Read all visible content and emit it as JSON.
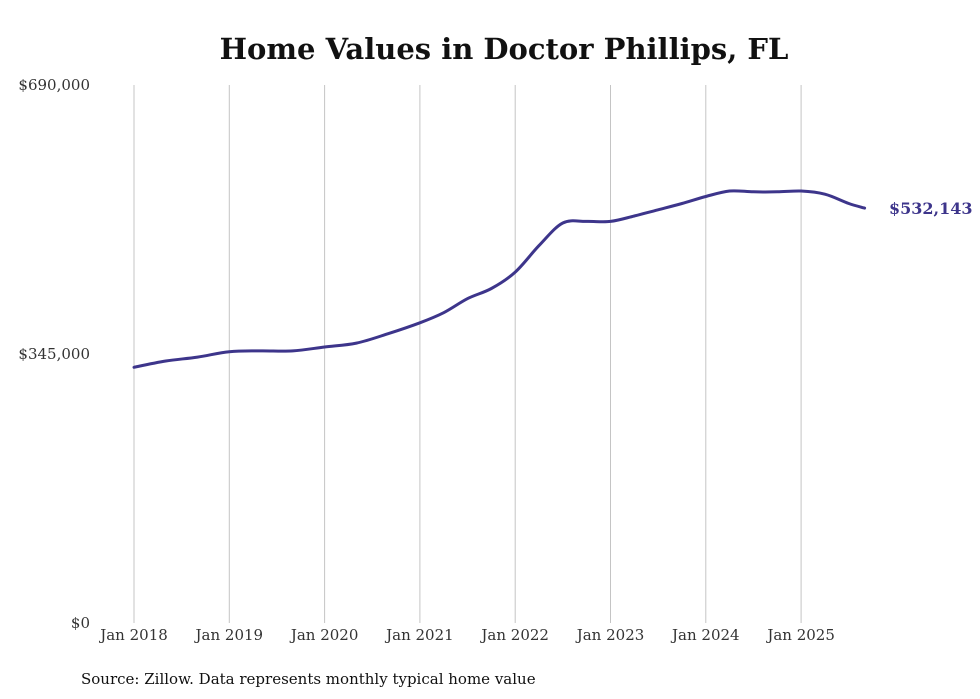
{
  "chart_data": {
    "type": "line",
    "title": "Home Values in Doctor Phillips, FL",
    "source": "Source: Zillow. Data represents monthly typical home value",
    "xlabel": "",
    "ylabel": "",
    "ylim": [
      0,
      690000
    ],
    "y_ticks": [
      {
        "value": 0,
        "label": "$0"
      },
      {
        "value": 345000,
        "label": "$345,000"
      },
      {
        "value": 690000,
        "label": "$690,000"
      }
    ],
    "x_ticks": [
      "Jan 2018",
      "Jan 2019",
      "Jan 2020",
      "Jan 2021",
      "Jan 2022",
      "Jan 2023",
      "Jan 2024",
      "Jan 2025"
    ],
    "grid": "vertical",
    "line_color": "#3d358b",
    "end_label": "$532,143",
    "series": [
      {
        "points": [
          [
            "2018-01",
            328000
          ],
          [
            "2018-05",
            336000
          ],
          [
            "2018-09",
            341000
          ],
          [
            "2019-01",
            348000
          ],
          [
            "2019-05",
            349000
          ],
          [
            "2019-09",
            349000
          ],
          [
            "2020-01",
            354000
          ],
          [
            "2020-05",
            359000
          ],
          [
            "2020-09",
            371000
          ],
          [
            "2021-01",
            385000
          ],
          [
            "2021-04",
            398000
          ],
          [
            "2021-07",
            416000
          ],
          [
            "2021-10",
            429000
          ],
          [
            "2022-01",
            450000
          ],
          [
            "2022-04",
            484000
          ],
          [
            "2022-07",
            513000
          ],
          [
            "2022-10",
            515000
          ],
          [
            "2023-01",
            515000
          ],
          [
            "2023-04",
            522000
          ],
          [
            "2023-07",
            530000
          ],
          [
            "2023-10",
            538000
          ],
          [
            "2024-01",
            547000
          ],
          [
            "2024-04",
            554000
          ],
          [
            "2024-07",
            553000
          ],
          [
            "2024-10",
            553000
          ],
          [
            "2025-01",
            554000
          ],
          [
            "2025-04",
            550000
          ],
          [
            "2025-07",
            538000
          ],
          [
            "2025-09",
            532143
          ]
        ]
      }
    ]
  }
}
